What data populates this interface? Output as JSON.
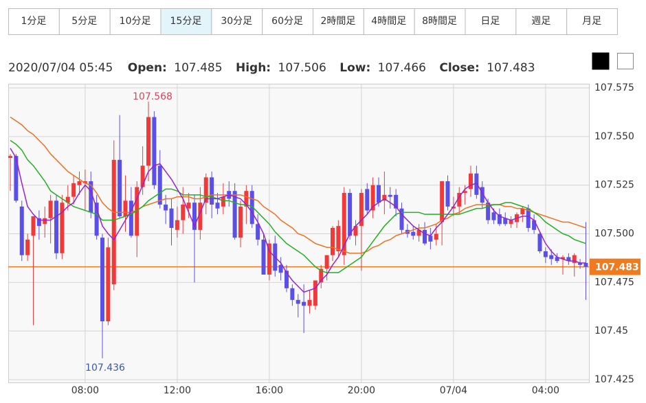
{
  "tabs": [
    "1分足",
    "5分足",
    "10分足",
    "15分足",
    "30分足",
    "60分足",
    "2時間足",
    "4時間足",
    "8時間足",
    "日足",
    "週足",
    "月足"
  ],
  "selected_tab": 3,
  "header": {
    "time": "2020/07/04 05:45",
    "open_label": "Open:",
    "high_label": "High:",
    "low_label": "Low:",
    "close_label": "Close:"
  },
  "chart_data": {
    "type": "candlestick",
    "up_color": "#f03a3a",
    "down_color": "#5a4fe6",
    "last_line_color": "#f07a20",
    "grid": true,
    "ylim": [
      107.425,
      107.575
    ],
    "yticks": [
      107.425,
      107.45,
      {
        "value": 107.475,
        "label": "107.475"
      },
      {
        "value": 107.5,
        "label": "107.500"
      },
      {
        "value": 107.525,
        "label": "107.525"
      },
      {
        "value": 107.55,
        "label": "107.550"
      },
      {
        "value": 107.575,
        "label": "107.575"
      }
    ],
    "categories": [
      null,
      null,
      null,
      null,
      null,
      null,
      null,
      null,
      null,
      null,
      null,
      null,
      null,
      "08:00",
      null,
      null,
      null,
      null,
      null,
      null,
      null,
      null,
      null,
      null,
      null,
      null,
      null,
      null,
      null,
      "12:00",
      null,
      null,
      null,
      null,
      null,
      null,
      null,
      null,
      null,
      null,
      null,
      null,
      null,
      null,
      null,
      "16:00",
      null,
      null,
      null,
      null,
      null,
      null,
      null,
      null,
      null,
      null,
      null,
      null,
      null,
      null,
      null,
      "20:00",
      null,
      null,
      null,
      null,
      null,
      null,
      null,
      null,
      null,
      null,
      null,
      null,
      null,
      null,
      null,
      "07/04",
      null,
      null,
      null,
      null,
      null,
      null,
      null,
      null,
      null,
      null,
      null,
      null,
      null,
      null,
      null,
      "04:00",
      null,
      null,
      null,
      null,
      null,
      null,
      null
    ],
    "open": [
      107.539,
      107.54,
      107.514,
      107.489,
      107.499,
      107.508,
      107.505,
      107.508,
      107.517,
      107.49,
      107.516,
      107.519,
      107.525,
      107.526,
      107.527,
      107.516,
      107.498,
      107.455,
      107.474,
      107.538,
      107.509,
      107.517,
      107.499,
      107.524,
      107.535,
      107.56,
      107.535,
      107.515,
      107.513,
      107.502,
      107.507,
      107.513,
      107.516,
      107.502,
      107.516,
      107.529,
      107.516,
      107.514,
      107.522,
      107.522,
      107.498,
      107.514,
      107.522,
      107.505,
      107.497,
      107.479,
      107.495,
      107.484,
      107.481,
      107.472,
      107.466,
      107.465,
      107.463,
      107.463,
      107.475,
      107.482,
      107.489,
      107.491,
      107.489,
      107.521,
      107.499,
      107.504,
      107.523,
      107.512,
      107.525,
      107.517,
      107.52,
      107.52,
      107.513,
      107.502,
      107.501,
      107.499,
      107.502,
      107.499,
      107.497,
      107.506,
      107.527,
      107.513,
      107.514,
      107.521,
      107.523,
      107.531,
      107.524,
      107.516,
      107.511,
      107.51,
      107.508,
      107.505,
      107.506,
      107.51,
      107.513,
      107.507,
      107.5,
      107.491,
      107.489,
      107.488,
      107.487,
      107.488,
      107.485,
      107.485,
      107.485
    ],
    "high": [
      107.541,
      107.541,
      107.517,
      107.5,
      107.509,
      107.512,
      107.514,
      107.52,
      107.52,
      107.52,
      107.525,
      107.53,
      107.532,
      107.533,
      107.532,
      107.52,
      107.5,
      107.498,
      107.548,
      107.561,
      107.53,
      107.524,
      107.527,
      107.545,
      107.568,
      107.563,
      107.543,
      107.52,
      107.518,
      107.514,
      107.524,
      107.521,
      107.52,
      107.524,
      107.531,
      107.532,
      107.521,
      107.526,
      107.527,
      107.526,
      107.517,
      107.525,
      107.525,
      107.51,
      107.5,
      107.497,
      107.499,
      107.488,
      107.484,
      107.474,
      107.469,
      107.474,
      107.471,
      107.476,
      107.484,
      107.489,
      107.504,
      107.507,
      107.524,
      107.523,
      107.507,
      107.523,
      107.526,
      107.529,
      107.529,
      107.532,
      107.524,
      107.523,
      107.516,
      107.505,
      107.504,
      107.505,
      107.506,
      107.503,
      107.505,
      107.527,
      107.53,
      107.519,
      107.524,
      107.525,
      107.535,
      107.535,
      107.527,
      107.518,
      107.513,
      107.513,
      107.511,
      107.509,
      107.511,
      107.514,
      107.515,
      107.51,
      107.501,
      107.493,
      107.492,
      107.49,
      107.489,
      107.49,
      107.49,
      107.487,
      107.506
    ],
    "low": [
      107.522,
      107.516,
      107.486,
      107.486,
      107.453,
      107.497,
      107.498,
      107.495,
      107.487,
      107.487,
      107.512,
      107.515,
      107.52,
      107.512,
      107.508,
      107.497,
      107.436,
      107.453,
      107.471,
      107.508,
      107.501,
      107.498,
      107.488,
      107.52,
      107.527,
      107.523,
      107.513,
      107.505,
      107.494,
      107.498,
      107.5,
      107.508,
      107.475,
      107.497,
      107.51,
      107.508,
      107.51,
      107.51,
      107.514,
      107.497,
      107.493,
      107.505,
      107.503,
      107.494,
      107.479,
      107.476,
      107.478,
      107.476,
      107.47,
      107.463,
      107.457,
      107.449,
      107.459,
      107.461,
      107.472,
      107.476,
      107.486,
      107.488,
      107.484,
      107.497,
      107.494,
      107.481,
      107.51,
      107.508,
      107.514,
      107.51,
      107.513,
      107.509,
      107.5,
      107.498,
      107.497,
      107.496,
      107.494,
      107.492,
      107.494,
      107.494,
      107.512,
      107.509,
      107.51,
      107.515,
      107.519,
      107.518,
      107.513,
      107.505,
      107.505,
      107.504,
      107.504,
      107.503,
      107.503,
      107.506,
      107.501,
      107.5,
      107.49,
      107.485,
      107.484,
      107.485,
      107.479,
      107.484,
      107.478,
      107.482,
      107.466
    ],
    "close": [
      107.54,
      107.517,
      107.489,
      107.497,
      107.509,
      107.504,
      107.508,
      107.517,
      107.49,
      107.516,
      107.519,
      107.526,
      107.527,
      107.527,
      107.511,
      107.499,
      107.455,
      107.493,
      107.538,
      107.509,
      107.517,
      107.499,
      107.524,
      107.535,
      107.56,
      107.525,
      107.515,
      107.512,
      107.503,
      107.507,
      107.515,
      107.516,
      107.502,
      107.516,
      107.529,
      107.515,
      107.513,
      107.519,
      107.518,
      107.498,
      107.514,
      107.522,
      107.505,
      107.497,
      107.479,
      107.495,
      107.481,
      107.48,
      107.472,
      107.466,
      107.464,
      107.463,
      107.466,
      107.476,
      107.482,
      107.489,
      107.503,
      107.504,
      107.521,
      107.499,
      107.504,
      107.521,
      107.512,
      107.525,
      107.516,
      107.52,
      107.519,
      107.513,
      107.502,
      107.5,
      107.499,
      107.502,
      107.495,
      107.496,
      107.5,
      107.527,
      107.514,
      107.514,
      107.521,
      107.522,
      107.531,
      107.52,
      107.516,
      107.507,
      107.507,
      107.505,
      107.505,
      107.507,
      107.51,
      107.513,
      107.503,
      107.502,
      107.491,
      107.488,
      107.487,
      107.486,
      107.488,
      107.486,
      107.489,
      107.484,
      107.483
    ],
    "series": [
      {
        "color": "#f07020",
        "values": [
          107.56,
          107.558,
          107.556,
          107.553,
          107.551,
          107.548,
          107.545,
          107.541,
          107.538,
          107.535,
          107.532,
          107.53,
          107.528,
          107.526,
          107.525,
          107.521,
          107.516,
          107.513,
          107.511,
          107.511,
          107.511,
          107.511,
          107.512,
          107.514,
          107.515,
          107.516,
          107.517,
          107.518,
          107.518,
          107.519,
          107.519,
          107.519,
          107.518,
          107.518,
          107.519,
          107.52,
          107.52,
          107.52,
          107.52,
          107.52,
          107.52,
          107.519,
          107.518,
          107.517,
          107.514,
          107.512,
          107.51,
          107.507,
          107.505,
          107.503,
          107.5,
          107.499,
          107.497,
          107.495,
          107.494,
          107.493,
          107.493,
          107.492,
          107.491,
          107.49,
          107.49,
          107.49,
          107.491,
          107.493,
          107.494,
          107.496,
          107.497,
          107.499,
          107.5,
          107.501,
          107.502,
          107.503,
          107.503,
          107.504,
          107.505,
          107.507,
          107.508,
          107.51,
          107.511,
          107.513,
          107.514,
          107.515,
          107.515,
          107.515,
          107.515,
          107.515,
          107.514,
          107.514,
          107.513,
          107.513,
          107.512,
          107.511,
          107.51,
          107.509,
          107.508,
          107.507,
          107.506,
          107.506,
          107.505,
          107.504,
          107.503
        ]
      },
      {
        "color": "#20b020",
        "values": [
          107.548,
          107.546,
          107.543,
          107.538,
          107.535,
          107.531,
          107.527,
          107.522,
          107.52,
          107.518,
          107.516,
          107.514,
          107.513,
          107.512,
          107.511,
          107.51,
          107.507,
          107.507,
          107.507,
          107.508,
          107.509,
          107.51,
          107.512,
          107.514,
          107.517,
          107.519,
          107.521,
          107.523,
          107.523,
          107.522,
          107.52,
          107.52,
          107.52,
          107.52,
          107.519,
          107.519,
          107.518,
          107.517,
          107.517,
          107.516,
          107.515,
          107.515,
          107.514,
          107.511,
          107.508,
          107.505,
          107.501,
          107.498,
          107.495,
          107.493,
          107.491,
          107.489,
          107.486,
          107.483,
          107.481,
          107.48,
          107.48,
          107.48,
          107.482,
          107.484,
          107.486,
          107.488,
          107.492,
          107.496,
          107.5,
          107.504,
          107.507,
          107.51,
          107.511,
          107.511,
          107.511,
          107.511,
          107.51,
          107.51,
          107.51,
          107.51,
          107.51,
          107.51,
          107.51,
          107.511,
          107.512,
          107.513,
          107.513,
          107.514,
          107.515,
          107.515,
          107.516,
          107.516,
          107.515,
          107.514,
          107.513,
          107.511,
          107.509,
          107.506,
          107.504,
          107.502,
          107.5,
          107.499,
          107.497,
          107.496,
          107.495
        ]
      },
      {
        "color": "#9a20d0",
        "values": [
          107.544,
          107.539,
          107.526,
          107.514,
          107.51,
          107.507,
          107.507,
          107.507,
          107.509,
          107.511,
          107.514,
          107.516,
          107.521,
          107.525,
          107.522,
          107.513,
          107.504,
          107.5,
          107.497,
          107.502,
          107.507,
          107.512,
          107.518,
          107.525,
          107.532,
          107.535,
          107.536,
          107.532,
          107.528,
          107.523,
          107.518,
          107.511,
          107.504,
          107.511,
          107.518,
          107.518,
          107.518,
          107.519,
          107.52,
          107.519,
          107.518,
          107.515,
          107.511,
          107.506,
          107.5,
          107.491,
          107.488,
          107.485,
          107.48,
          107.476,
          107.473,
          107.47,
          107.471,
          107.472,
          107.476,
          107.479,
          107.484,
          107.488,
          107.494,
          107.5,
          107.504,
          107.507,
          107.51,
          107.514,
          107.516,
          107.518,
          107.516,
          107.514,
          107.51,
          107.507,
          107.504,
          107.502,
          107.5,
          107.499,
          107.503,
          107.506,
          107.51,
          107.514,
          107.519,
          107.523,
          107.525,
          107.526,
          107.521,
          107.516,
          107.512,
          107.509,
          107.508,
          107.507,
          107.508,
          107.509,
          107.509,
          107.507,
          107.501,
          107.495,
          107.491,
          107.488,
          107.487,
          107.486,
          107.486,
          107.485,
          107.485
        ]
      }
    ],
    "high_annotation_index": 24,
    "low_annotation_index": 16
  }
}
